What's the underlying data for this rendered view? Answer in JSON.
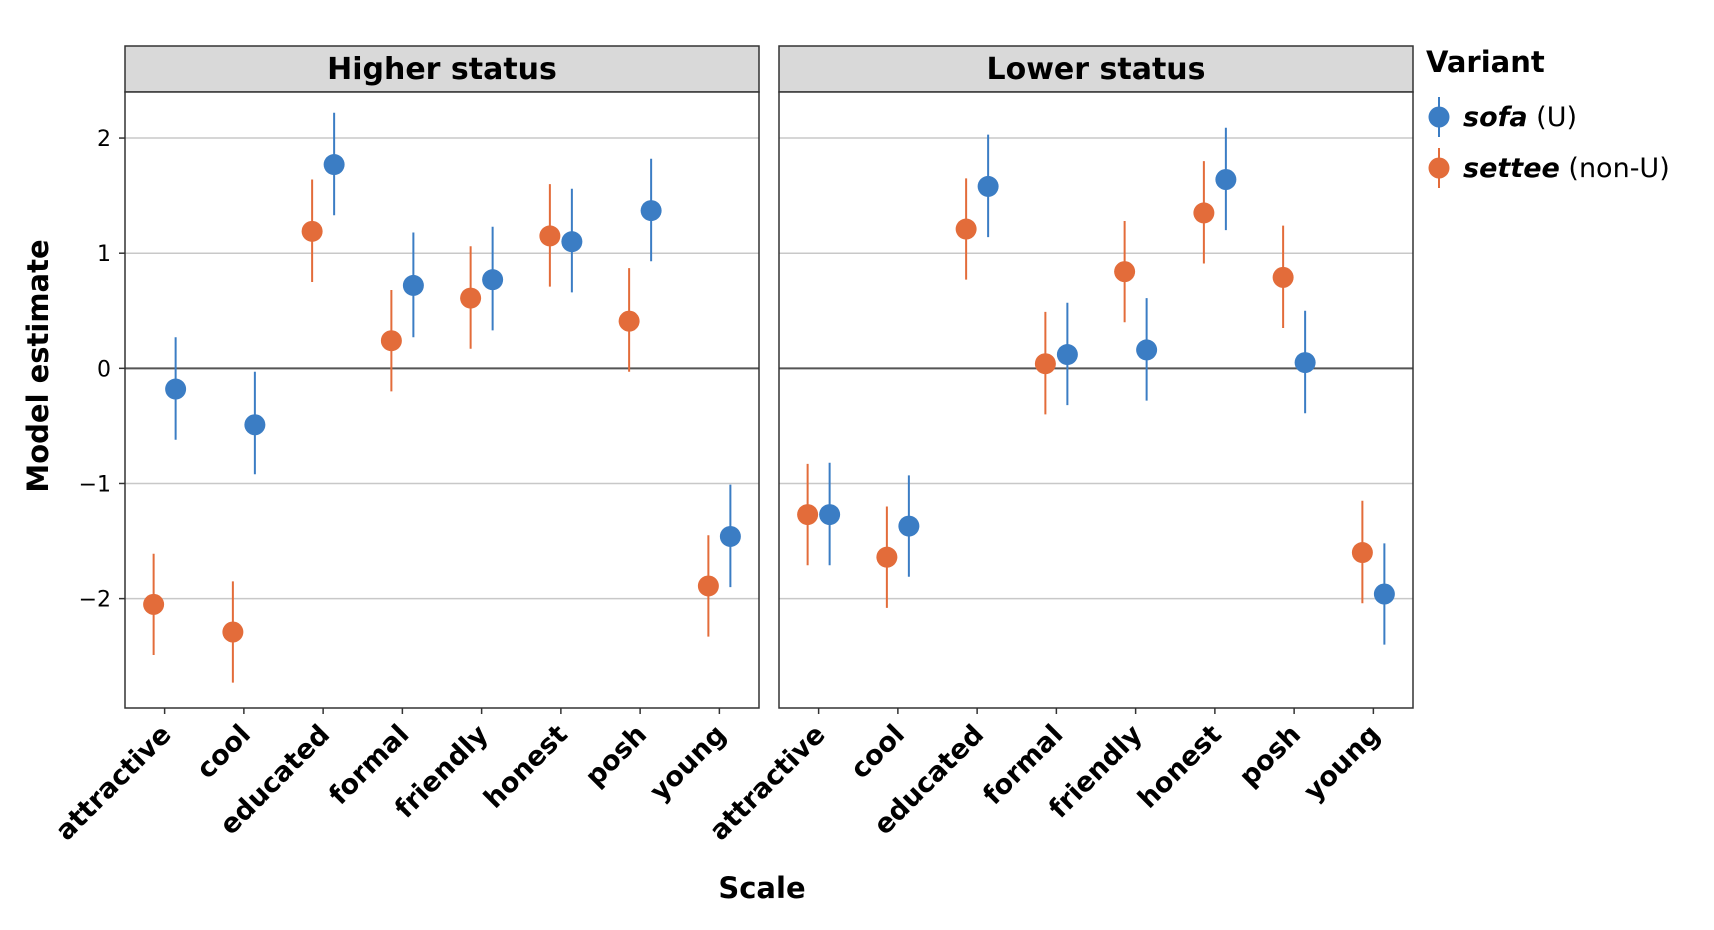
{
  "chart_data": {
    "type": "scatter",
    "subtype": "point-range (faceted)",
    "xlabel": "Scale",
    "ylabel": "Model estimate",
    "ylim": [
      -2.95,
      2.4
    ],
    "yticks": [
      2,
      1,
      0,
      -1,
      -2
    ],
    "ytick_labels": [
      "2",
      "1",
      "0",
      "−1",
      "−2"
    ],
    "categories": [
      "attractive",
      "cool",
      "educated",
      "formal",
      "friendly",
      "honest",
      "posh",
      "young"
    ],
    "grid": true,
    "zero_line": true,
    "legend": {
      "title": "Variant",
      "position": "right",
      "items": [
        {
          "key": "sofa",
          "name": "sofa",
          "suffix": " (U)",
          "color": "#3b7dc4"
        },
        {
          "key": "settee",
          "name": "settee",
          "suffix": " (non-U)",
          "color": "#e36c3a"
        }
      ]
    },
    "panels": [
      {
        "title": "Higher status",
        "series": [
          {
            "key": "sofa",
            "values": [
              -0.18,
              -0.49,
              1.77,
              0.72,
              0.77,
              1.1,
              1.37,
              -1.46
            ],
            "lower": [
              -0.62,
              -0.92,
              1.33,
              0.27,
              0.33,
              0.66,
              0.93,
              -1.9
            ],
            "upper": [
              0.27,
              -0.03,
              2.22,
              1.18,
              1.23,
              1.56,
              1.82,
              -1.01
            ]
          },
          {
            "key": "settee",
            "values": [
              -2.05,
              -2.29,
              1.19,
              0.24,
              0.61,
              1.15,
              0.41,
              -1.89
            ],
            "lower": [
              -2.49,
              -2.73,
              0.75,
              -0.2,
              0.17,
              0.71,
              -0.03,
              -2.33
            ],
            "upper": [
              -1.61,
              -1.85,
              1.64,
              0.68,
              1.06,
              1.6,
              0.87,
              -1.45
            ]
          }
        ]
      },
      {
        "title": "Lower status",
        "series": [
          {
            "key": "sofa",
            "values": [
              -1.27,
              -1.37,
              1.58,
              0.12,
              0.16,
              1.64,
              0.05,
              -1.96
            ],
            "lower": [
              -1.71,
              -1.81,
              1.14,
              -0.32,
              -0.28,
              1.2,
              -0.39,
              -2.4
            ],
            "upper": [
              -0.82,
              -0.93,
              2.03,
              0.57,
              0.61,
              2.09,
              0.5,
              -1.52
            ]
          },
          {
            "key": "settee",
            "values": [
              -1.27,
              -1.64,
              1.21,
              0.04,
              0.84,
              1.35,
              0.79,
              -1.6
            ],
            "lower": [
              -1.71,
              -2.08,
              0.77,
              -0.4,
              0.4,
              0.91,
              0.35,
              -2.04
            ],
            "upper": [
              -0.83,
              -1.2,
              1.65,
              0.49,
              1.28,
              1.8,
              1.24,
              -1.15
            ]
          }
        ]
      }
    ]
  }
}
